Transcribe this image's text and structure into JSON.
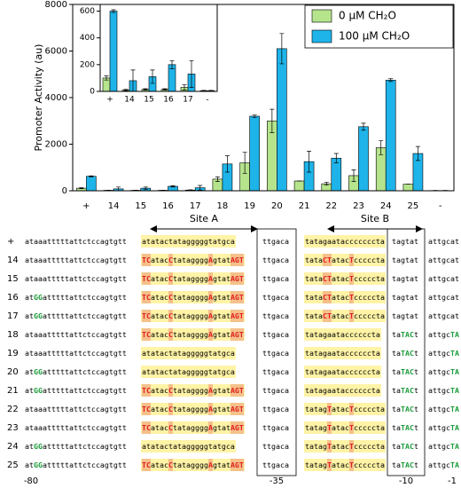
{
  "chart_data": [
    {
      "type": "bar",
      "ylabel": "Promoter Activity (au)",
      "categories": [
        "+",
        "14",
        "15",
        "16",
        "17",
        "18",
        "19",
        "20",
        "21",
        "22",
        "23",
        "24",
        "25",
        "-"
      ],
      "series": [
        {
          "name": "0 μM CH₂O",
          "color": "#b5e48c",
          "values": [
            110,
            20,
            20,
            20,
            30,
            500,
            1200,
            3000,
            420,
            300,
            650,
            1850,
            280,
            10
          ],
          "errors": [
            20,
            5,
            5,
            5,
            10,
            100,
            450,
            500,
            0,
            60,
            250,
            300,
            0,
            5
          ]
        },
        {
          "name": "100 μM CH₂O",
          "color": "#1eb4ea",
          "values": [
            620,
            80,
            110,
            190,
            130,
            1150,
            3200,
            6100,
            1250,
            1400,
            2750,
            4750,
            1600,
            10
          ],
          "errors": [
            20,
            80,
            50,
            30,
            100,
            350,
            50,
            650,
            450,
            200,
            150,
            60,
            300,
            5
          ]
        }
      ],
      "ylim": [
        0,
        8000
      ],
      "yticks": [
        0,
        2000,
        4000,
        6000,
        8000
      ],
      "legend": "top-right"
    },
    {
      "type": "bar",
      "categories": [
        "+",
        "14",
        "15",
        "16",
        "17",
        "-"
      ],
      "series": [
        {
          "color": "#b5e48c",
          "values": [
            100,
            10,
            15,
            15,
            30,
            5
          ],
          "errors": [
            15,
            5,
            5,
            5,
            20,
            3
          ]
        },
        {
          "color": "#1eb4ea",
          "values": [
            600,
            80,
            110,
            200,
            130,
            5
          ],
          "errors": [
            10,
            80,
            50,
            30,
            100,
            3
          ]
        }
      ],
      "ylim": [
        0,
        650
      ],
      "yticks": [
        0,
        200,
        400,
        600
      ]
    }
  ],
  "alignment": {
    "site_labels": [
      "Site A",
      "Site B"
    ],
    "positions": [
      "-80",
      "-35",
      "-10",
      "-1"
    ],
    "rows": [
      {
        "label": "+",
        "segments": [
          "ataaatttttattctccagtgtt",
          "atatactatagggggtatgca",
          "ttgaca",
          "tatagaatacccccccta",
          "tagtat",
          "attgcat"
        ]
      },
      {
        "label": "14",
        "segments": [
          "ataaatttttattctccagtgtt",
          "TCatacCtataggggAgtatAGT",
          "ttgaca",
          "tataCTatacTcccccta",
          "tagtat",
          "attgcat"
        ]
      },
      {
        "label": "15",
        "segments": [
          "ataaatttttattctccagtgtt",
          "TCatacCtataggggAgtatAGT",
          "ttgaca",
          "tataCTatacTcccccta",
          "tagtat",
          "attgcat"
        ]
      },
      {
        "label": "16",
        "segments": [
          "atGGatttttattctccagtgtt",
          "TCatacCtataggggAgtatAGT",
          "ttgaca",
          "tataCTatacTcccccta",
          "tagtat",
          "attgcat"
        ]
      },
      {
        "label": "17",
        "segments": [
          "atGGatttttattctccagtgtt",
          "TCatacCtataggggAgtatAGT",
          "ttgaca",
          "tataCTatacTcccccta",
          "tagtat",
          "attgcat"
        ]
      },
      {
        "label": "18",
        "segments": [
          "ataaatttttattctccagtgtt",
          "TCatacCtataggggAgtatAGT",
          "ttgaca",
          "tatagaataccccccta",
          "taTACt",
          "attgcTA"
        ]
      },
      {
        "label": "19",
        "segments": [
          "ataaatttttattctccagtgtt",
          "atatactatagggggtatgca",
          "ttgaca",
          "tatagaataccccccta",
          "taTACt",
          "attgcTA"
        ]
      },
      {
        "label": "20",
        "segments": [
          "atGGatttttattctccagtgtt",
          "atatactatagggggtatgca",
          "ttgaca",
          "tatagaataccccccta",
          "taTACt",
          "attgcTA"
        ]
      },
      {
        "label": "21",
        "segments": [
          "atGGatttttattctccagtgtt",
          "TCatacCtataggggAgtatAGT",
          "ttgaca",
          "tatagaataccccccta",
          "taTACt",
          "attgcTA"
        ]
      },
      {
        "label": "22",
        "segments": [
          "ataaatttttattctccagtgtt",
          "TCatacCtataggggAgtatAGT",
          "ttgaca",
          "tatagTatacTcccccta",
          "taTACt",
          "attgcTA"
        ]
      },
      {
        "label": "23",
        "segments": [
          "ataaatttttattctccagtgtt",
          "TCatacCtataggggAgtatAGT",
          "ttgaca",
          "tatagTatacTcccccta",
          "taTACt",
          "attgcTA"
        ]
      },
      {
        "label": "24",
        "segments": [
          "atGGatttttattctccagtgtt",
          "atatactatagggggtatgca",
          "ttgaca",
          "tatagTatacTcccccta",
          "taTACt",
          "attgcTA"
        ]
      },
      {
        "label": "25",
        "segments": [
          "atGGatttttattctccagtgtt",
          "TCatacCtataggggAgtatAGT",
          "ttgaca",
          "tatagTatacTcccccta",
          "taTACt",
          "attgcTA"
        ]
      }
    ]
  }
}
